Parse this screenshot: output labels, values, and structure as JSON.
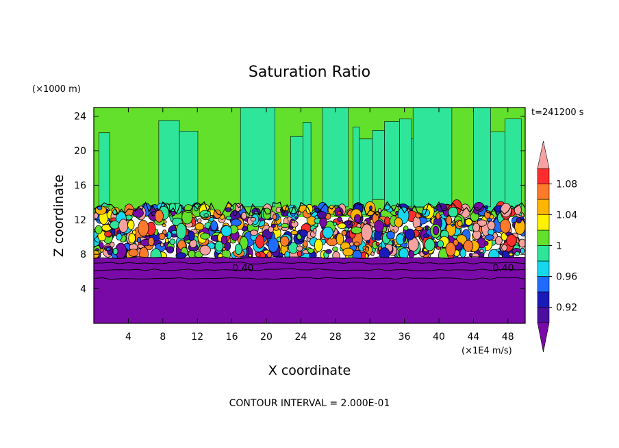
{
  "chart_data": {
    "type": "heatmap",
    "title": "Saturation Ratio",
    "xlabel": "X coordinate",
    "ylabel": "Z coordinate",
    "x_unit": "(×1E4 m/s)",
    "y_unit": "(×1000 m)",
    "time_label": "t=241200 s",
    "footer": "CONTOUR INTERVAL = 2.000E-01",
    "contour_label": "0.40",
    "xlim": [
      0,
      50
    ],
    "ylim": [
      0,
      25
    ],
    "x_ticks": [
      "4",
      "8",
      "12",
      "16",
      "20",
      "24",
      "28",
      "32",
      "36",
      "40",
      "44",
      "48"
    ],
    "y_ticks": [
      "4",
      "8",
      "12",
      "16",
      "20",
      "24"
    ],
    "colorbar": {
      "levels": [
        0.9,
        0.92,
        0.94,
        0.96,
        0.98,
        1.0,
        1.02,
        1.04,
        1.06,
        1.08,
        1.1
      ],
      "labels": [
        "0.92",
        "0.96",
        "1",
        "1.04",
        "1.08"
      ],
      "colors": [
        "#4b0f9e",
        "#1a1ab8",
        "#1f6bff",
        "#16d7ee",
        "#2ee59a",
        "#63e02b",
        "#fff200",
        "#ffb400",
        "#ff7a2a",
        "#ff2d2d",
        "#f7a2a0"
      ],
      "under_color": "#7a0aa8",
      "over_color": "#f7a2a0"
    },
    "regions": {
      "lower_dry_layer_top_z": 7.5,
      "turbulent_band_z": [
        7.8,
        13.5
      ],
      "upper_saturated_z": [
        13.5,
        25
      ]
    }
  }
}
